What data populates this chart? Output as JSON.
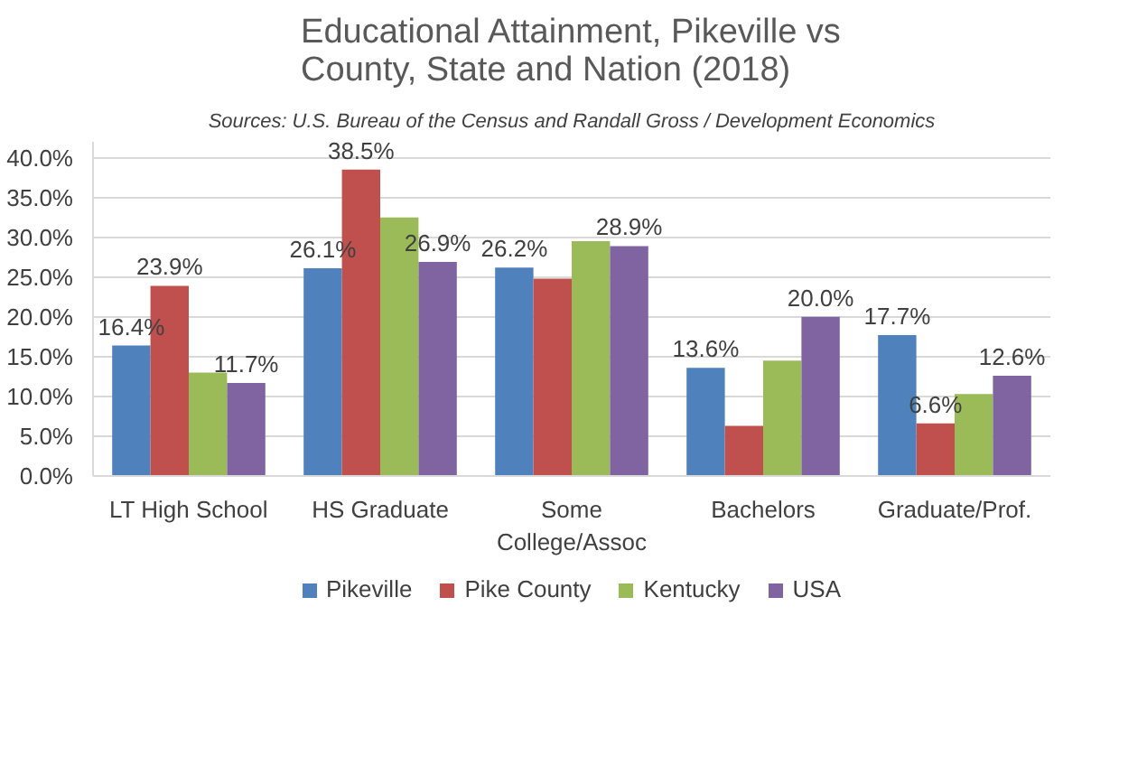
{
  "chart_data": {
    "type": "bar",
    "title": "Educational Attainment, Pikeville vs County, State and Nation (2018)",
    "subtitle": "Sources: U.S. Bureau of the Census and Randall Gross / Development Economics",
    "categories": [
      "LT High School",
      "HS Graduate",
      "Some College/Assoc",
      "Bachelors",
      "Graduate/Prof."
    ],
    "series": [
      {
        "name": "Pikeville",
        "color": "#4f81bd",
        "values": [
          16.4,
          26.1,
          26.2,
          13.6,
          17.7
        ],
        "value_labels": [
          "16.4%",
          "26.1%",
          "26.2%",
          "13.6%",
          "17.7%"
        ]
      },
      {
        "name": "Pike County",
        "color": "#c0504d",
        "values": [
          23.9,
          38.5,
          24.8,
          6.3,
          6.6
        ],
        "value_labels": [
          "23.9%",
          "38.5%",
          null,
          null,
          "6.6%"
        ]
      },
      {
        "name": "Kentucky",
        "color": "#9bbb59",
        "values": [
          13.0,
          32.5,
          29.5,
          14.5,
          10.3
        ]
      },
      {
        "name": "USA",
        "color": "#8064a2",
        "values": [
          11.7,
          26.9,
          28.9,
          20.0,
          12.6
        ],
        "value_labels": [
          "11.7%",
          "26.9%",
          "28.9%",
          "20.0%",
          "12.6%"
        ]
      }
    ],
    "ylim": [
      0,
      42
    ],
    "yticks": [
      {
        "value": 0,
        "label": "0.0%"
      },
      {
        "value": 5,
        "label": "5.0%"
      },
      {
        "value": 10,
        "label": "10.0%"
      },
      {
        "value": 15,
        "label": "15.0%"
      },
      {
        "value": 20,
        "label": "20.0%"
      },
      {
        "value": 25,
        "label": "25.0%"
      },
      {
        "value": 30,
        "label": "30.0%"
      },
      {
        "value": 35,
        "label": "35.0%"
      },
      {
        "value": 40,
        "label": "40.0%"
      }
    ],
    "grid": "y",
    "legend": "bottom"
  }
}
